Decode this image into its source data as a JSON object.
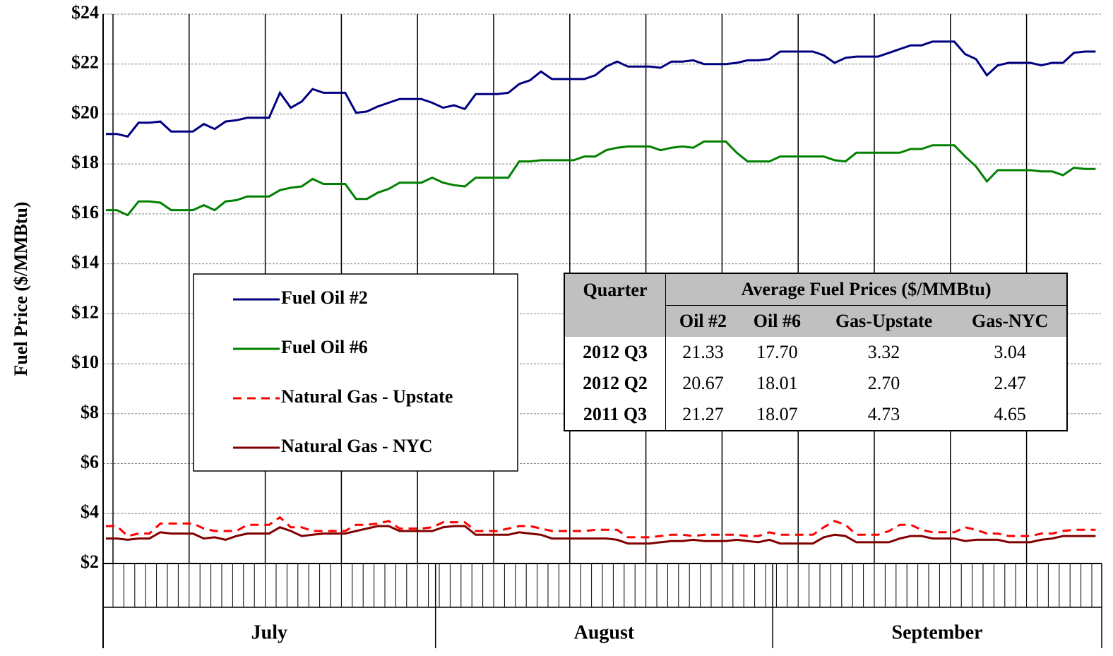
{
  "chart_data": {
    "type": "line",
    "y_label": "Fuel Price ($/MMBtu)",
    "ylim": [
      2,
      24
    ],
    "yticks": [
      {
        "value": 2,
        "label": "$2"
      },
      {
        "value": 4,
        "label": "$4"
      },
      {
        "value": 6,
        "label": "$6"
      },
      {
        "value": 8,
        "label": "$8"
      },
      {
        "value": 10,
        "label": "$10"
      },
      {
        "value": 12,
        "label": "$12"
      },
      {
        "value": 14,
        "label": "$14"
      },
      {
        "value": 16,
        "label": "$16"
      },
      {
        "value": 18,
        "label": "$18"
      },
      {
        "value": 20,
        "label": "$20"
      },
      {
        "value": 22,
        "label": "$22"
      },
      {
        "value": 24,
        "label": "$24"
      }
    ],
    "grid": true,
    "categories": [
      "July",
      null,
      null,
      null,
      null,
      null,
      null,
      null,
      null,
      null,
      null,
      null,
      null,
      null,
      null,
      null,
      null,
      null,
      null,
      null,
      null,
      null,
      null,
      null,
      null,
      null,
      null,
      null,
      null,
      null,
      null,
      "August",
      null,
      null,
      null,
      null,
      null,
      null,
      null,
      null,
      null,
      null,
      null,
      null,
      null,
      null,
      null,
      null,
      null,
      null,
      null,
      null,
      null,
      null,
      null,
      null,
      null,
      null,
      null,
      null,
      null,
      null,
      "September",
      null,
      null,
      null,
      null,
      null,
      null,
      null,
      null,
      null,
      null,
      null,
      null,
      null,
      null,
      null,
      null,
      null,
      null,
      null,
      null,
      null,
      null,
      null,
      null,
      null,
      null,
      null,
      null,
      null
    ],
    "series": [
      {
        "name": "Fuel Oil #2",
        "color": "#000080",
        "dash": false,
        "values": [
          19.2,
          19.2,
          19.1,
          19.65,
          19.65,
          19.7,
          19.3,
          19.3,
          19.3,
          19.6,
          19.4,
          19.7,
          19.75,
          19.85,
          19.85,
          19.85,
          20.85,
          20.25,
          20.5,
          21.0,
          20.85,
          20.85,
          20.85,
          20.05,
          20.1,
          20.3,
          20.45,
          20.6,
          20.6,
          20.6,
          20.45,
          20.25,
          20.35,
          20.2,
          20.8,
          20.8,
          20.8,
          20.85,
          21.2,
          21.35,
          21.7,
          21.4,
          21.4,
          21.4,
          21.4,
          21.55,
          21.9,
          22.1,
          21.9,
          21.9,
          21.9,
          21.85,
          22.1,
          22.1,
          22.15,
          22.0,
          22.0,
          22.0,
          22.05,
          22.15,
          22.15,
          22.2,
          22.5,
          22.5,
          22.5,
          22.5,
          22.35,
          22.05,
          22.25,
          22.3,
          22.3,
          22.3,
          22.45,
          22.6,
          22.75,
          22.75,
          22.9,
          22.9,
          22.9,
          22.4,
          22.2,
          21.55,
          21.95,
          22.05,
          22.05,
          22.05,
          21.95,
          22.05,
          22.05,
          22.45,
          22.5,
          22.5
        ]
      },
      {
        "name": "Fuel Oil #6",
        "color": "#008000",
        "dash": false,
        "values": [
          16.15,
          16.15,
          15.95,
          16.5,
          16.5,
          16.45,
          16.15,
          16.15,
          16.15,
          16.35,
          16.15,
          16.5,
          16.55,
          16.7,
          16.7,
          16.7,
          16.95,
          17.05,
          17.1,
          17.4,
          17.2,
          17.2,
          17.2,
          16.6,
          16.6,
          16.85,
          17.0,
          17.25,
          17.25,
          17.25,
          17.45,
          17.25,
          17.15,
          17.1,
          17.45,
          17.45,
          17.45,
          17.45,
          18.1,
          18.1,
          18.15,
          18.15,
          18.15,
          18.15,
          18.3,
          18.3,
          18.55,
          18.65,
          18.7,
          18.7,
          18.7,
          18.55,
          18.65,
          18.7,
          18.65,
          18.9,
          18.9,
          18.9,
          18.45,
          18.1,
          18.1,
          18.1,
          18.3,
          18.3,
          18.3,
          18.3,
          18.3,
          18.15,
          18.1,
          18.45,
          18.45,
          18.45,
          18.45,
          18.45,
          18.6,
          18.6,
          18.75,
          18.75,
          18.75,
          18.3,
          17.9,
          17.3,
          17.75,
          17.75,
          17.75,
          17.75,
          17.7,
          17.7,
          17.55,
          17.85,
          17.8,
          17.8
        ]
      },
      {
        "name": "Natural Gas - Upstate",
        "color": "#ff0000",
        "dash": true,
        "values": [
          3.5,
          3.5,
          3.1,
          3.2,
          3.2,
          3.6,
          3.6,
          3.6,
          3.6,
          3.4,
          3.3,
          3.3,
          3.3,
          3.55,
          3.55,
          3.55,
          3.85,
          3.45,
          3.45,
          3.3,
          3.3,
          3.3,
          3.3,
          3.55,
          3.55,
          3.6,
          3.7,
          3.4,
          3.4,
          3.4,
          3.45,
          3.65,
          3.65,
          3.65,
          3.3,
          3.3,
          3.3,
          3.4,
          3.5,
          3.5,
          3.4,
          3.3,
          3.3,
          3.3,
          3.3,
          3.35,
          3.35,
          3.35,
          3.05,
          3.05,
          3.05,
          3.1,
          3.15,
          3.15,
          3.1,
          3.15,
          3.15,
          3.15,
          3.15,
          3.1,
          3.1,
          3.25,
          3.15,
          3.15,
          3.15,
          3.15,
          3.45,
          3.7,
          3.55,
          3.15,
          3.15,
          3.15,
          3.3,
          3.55,
          3.55,
          3.35,
          3.25,
          3.25,
          3.25,
          3.45,
          3.35,
          3.2,
          3.2,
          3.1,
          3.1,
          3.1,
          3.2,
          3.2,
          3.3,
          3.35,
          3.35,
          3.35
        ]
      },
      {
        "name": "Natural Gas - NYC",
        "color": "#800000",
        "dash": false,
        "values": [
          3.0,
          3.0,
          2.95,
          3.0,
          3.0,
          3.25,
          3.2,
          3.2,
          3.2,
          3.0,
          3.05,
          2.95,
          3.1,
          3.2,
          3.2,
          3.2,
          3.45,
          3.3,
          3.1,
          3.15,
          3.2,
          3.2,
          3.2,
          3.3,
          3.4,
          3.5,
          3.5,
          3.3,
          3.3,
          3.3,
          3.3,
          3.45,
          3.5,
          3.5,
          3.15,
          3.15,
          3.15,
          3.15,
          3.25,
          3.2,
          3.15,
          3.0,
          3.0,
          3.0,
          3.0,
          3.0,
          3.0,
          2.95,
          2.8,
          2.8,
          2.8,
          2.85,
          2.9,
          2.9,
          2.95,
          2.9,
          2.9,
          2.9,
          2.95,
          2.9,
          2.85,
          2.95,
          2.8,
          2.8,
          2.8,
          2.8,
          3.05,
          3.15,
          3.1,
          2.85,
          2.85,
          2.85,
          2.85,
          3.0,
          3.1,
          3.1,
          3.0,
          3.0,
          3.0,
          2.9,
          2.95,
          2.95,
          2.95,
          2.85,
          2.85,
          2.85,
          2.95,
          3.0,
          3.1,
          3.1,
          3.1,
          3.1
        ]
      }
    ]
  },
  "table": {
    "quarter_header": "Quarter",
    "group_header": "Average Fuel Prices ($/MMBtu)",
    "columns": [
      "Oil #2",
      "Oil #6",
      "Gas-Upstate",
      "Gas-NYC"
    ],
    "rows": [
      [
        "2012 Q3",
        "21.33",
        "17.70",
        "3.32",
        "3.04"
      ],
      [
        "2012 Q2",
        "20.67",
        "18.01",
        "2.70",
        "2.47"
      ],
      [
        "2011 Q3",
        "21.27",
        "18.07",
        "4.73",
        "4.65"
      ]
    ]
  }
}
